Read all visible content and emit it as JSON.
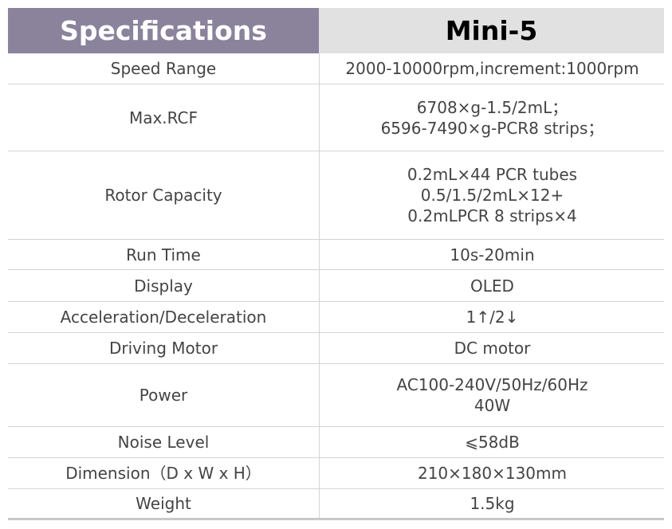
{
  "header": {
    "left": "Specifications",
    "right": "Mini-5"
  },
  "table": {
    "rows": [
      [
        "Speed Range",
        [
          "2000-10000rpm,increment:1000rpm"
        ]
      ],
      [
        "Max.RCF",
        [
          "6708×g-1.5/2mL；",
          "6596-7490×g-PCR8 strips；"
        ]
      ],
      [
        "Rotor Capacity",
        [
          "0.2mL×44 PCR tubes",
          "0.5/1.5/2mL×12+",
          "0.2mLPCR 8 strips×4"
        ]
      ],
      [
        "Run Time",
        [
          "10s-20min"
        ]
      ],
      [
        "Display",
        [
          "OLED"
        ]
      ],
      [
        "Acceleration/Deceleration",
        [
          "1↑/2↓"
        ]
      ],
      [
        "Driving Motor",
        [
          "DC motor"
        ]
      ],
      [
        "Power",
        [
          "AC100-240V/50Hz/60Hz",
          "40W"
        ]
      ],
      [
        "Noise Level",
        [
          "⩽58dB"
        ]
      ],
      [
        "Dimension（D x W x H）",
        [
          "210×180×130mm"
        ]
      ],
      [
        "Weight",
        [
          "1.5kg"
        ]
      ]
    ]
  }
}
